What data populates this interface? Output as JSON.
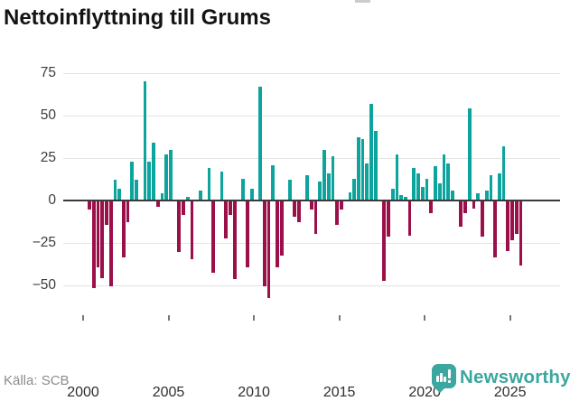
{
  "title": "Nettoinflyttning till Grums",
  "footer": {
    "source": "Källa: SCB",
    "brand": "Newsworthy"
  },
  "colors": {
    "positive": "#0da49e",
    "negative": "#9c104a",
    "grid": "#e4e4e4",
    "zero_axis": "#3a3a3a",
    "brand_teal": "#3ba79f",
    "axis_label": "#3d3d3d",
    "source_gray": "#8c8c8c"
  },
  "chart_data": {
    "type": "bar",
    "title": "Nettoinflyttning till Grums",
    "frequency": "quarterly",
    "start_period": "2000 Q1",
    "end_period": "2025 Q4",
    "x_ticks": [
      2000,
      2005,
      2010,
      2015,
      2020,
      2025
    ],
    "y_ticks": [
      75,
      50,
      25,
      0,
      -25,
      -50
    ],
    "ylim": [
      -62,
      80
    ],
    "grid": true,
    "legend": false,
    "values": [
      0,
      -5,
      -51,
      -39,
      -45,
      -14,
      -50,
      12,
      7,
      -33,
      -12,
      23,
      12,
      0,
      70,
      23,
      34,
      -3,
      4,
      27,
      30,
      0,
      -30,
      -8,
      2,
      -34,
      0,
      6,
      0,
      19,
      -42,
      0,
      17,
      -22,
      -8,
      -46,
      0,
      13,
      -39,
      7,
      0,
      67,
      -50,
      -57,
      21,
      -39,
      -32,
      0,
      12,
      -9,
      -12,
      0,
      15,
      -5,
      -19,
      11,
      30,
      16,
      26,
      -14,
      -5,
      0,
      5,
      13,
      37,
      36,
      22,
      57,
      41,
      0,
      -47,
      -21,
      7,
      27,
      3,
      2,
      -20,
      19,
      16,
      8,
      13,
      -7,
      20,
      10,
      27,
      22,
      6,
      0,
      -15,
      -7,
      54,
      -4,
      4,
      -21,
      6,
      15,
      -33,
      16,
      32,
      -29,
      -23,
      -19,
      -38,
      0
    ]
  }
}
